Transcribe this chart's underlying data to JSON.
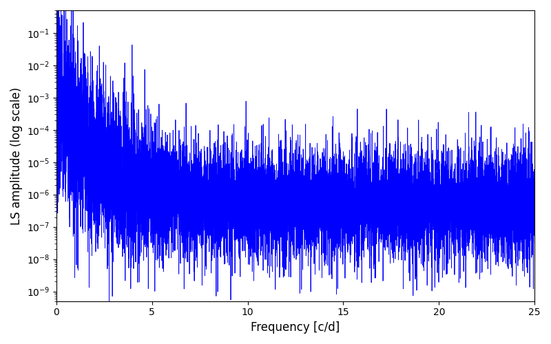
{
  "xlabel": "Frequency [c/d]",
  "ylabel": "LS amplitude (log scale)",
  "line_color": "#0000ff",
  "line_width": 0.6,
  "xlim": [
    0,
    25
  ],
  "ylim_low": 5e-10,
  "ylim_high": 0.5,
  "freq_min": 0.001,
  "freq_max": 25.0,
  "n_points": 10000,
  "seed": 7,
  "background_color": "#ffffff",
  "figsize": [
    8.0,
    5.0
  ],
  "dpi": 100
}
